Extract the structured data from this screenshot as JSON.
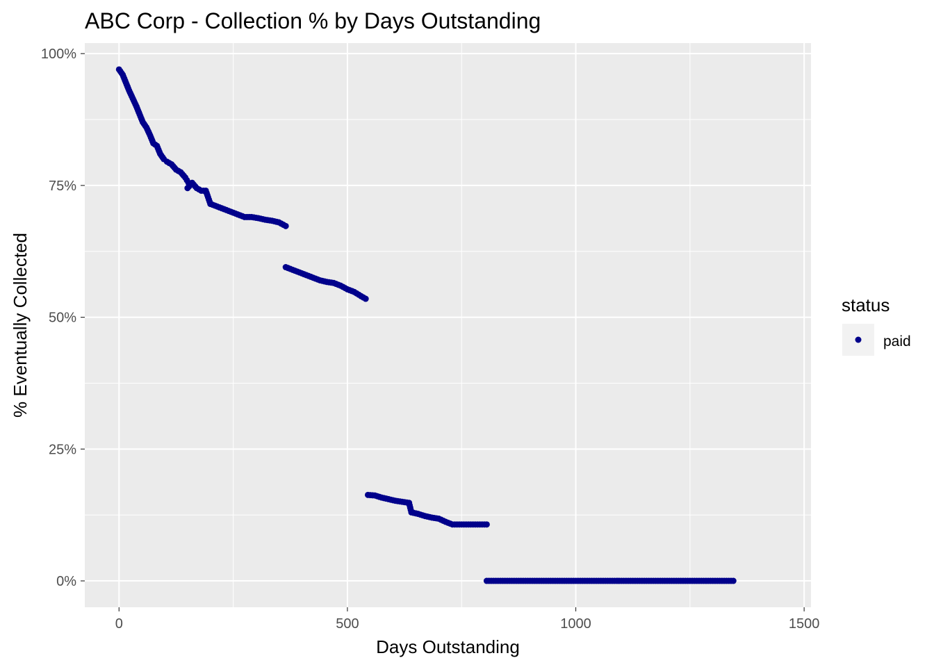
{
  "chart_data": {
    "type": "scatter",
    "title": "ABC Corp  - Collection % by Days Outstanding",
    "xlabel": "Days Outstanding",
    "ylabel": "% Eventually Collected",
    "xlim": [
      -75,
      1515
    ],
    "ylim": [
      -0.05,
      1.02
    ],
    "x_ticks": [
      0,
      500,
      1000,
      1500
    ],
    "x_tick_labels": [
      "0",
      "500",
      "1000",
      "1500"
    ],
    "y_ticks": [
      0,
      0.25,
      0.5,
      0.75,
      1.0
    ],
    "y_tick_labels": [
      "0%",
      "25%",
      "50%",
      "75%",
      "100%"
    ],
    "grid": true,
    "legend": {
      "title": "status",
      "position": "right",
      "entries": [
        {
          "label": "paid",
          "color": "#00008B"
        }
      ]
    },
    "series": [
      {
        "name": "paid",
        "color": "#00008B",
        "x": [
          0,
          8,
          15,
          22,
          30,
          38,
          45,
          52,
          60,
          68,
          75,
          83,
          90,
          98,
          105,
          115,
          125,
          135,
          145,
          152,
          150,
          160,
          170,
          180,
          190,
          200,
          200,
          215,
          230,
          245,
          260,
          275,
          290,
          305,
          320,
          335,
          350,
          365,
          365,
          380,
          395,
          410,
          425,
          440,
          455,
          470,
          485,
          500,
          515,
          530,
          540,
          545,
          560,
          575,
          590,
          605,
          620,
          635,
          640,
          655,
          670,
          685,
          700,
          715,
          730,
          745,
          760,
          775,
          790,
          805,
          805,
          830,
          860,
          890,
          920,
          950,
          980,
          1010,
          1040,
          1070,
          1100,
          1130,
          1160,
          1190,
          1220,
          1250,
          1280,
          1310,
          1340,
          1345
        ],
        "y": [
          0.97,
          0.96,
          0.945,
          0.93,
          0.915,
          0.9,
          0.885,
          0.87,
          0.86,
          0.845,
          0.83,
          0.825,
          0.81,
          0.8,
          0.795,
          0.79,
          0.78,
          0.775,
          0.765,
          0.755,
          0.745,
          0.755,
          0.745,
          0.74,
          0.74,
          0.715,
          0.715,
          0.71,
          0.705,
          0.7,
          0.695,
          0.69,
          0.69,
          0.688,
          0.685,
          0.683,
          0.68,
          0.673,
          0.595,
          0.59,
          0.585,
          0.58,
          0.575,
          0.57,
          0.567,
          0.565,
          0.56,
          0.553,
          0.548,
          0.54,
          0.535,
          0.163,
          0.162,
          0.158,
          0.155,
          0.152,
          0.15,
          0.148,
          0.13,
          0.127,
          0.123,
          0.12,
          0.118,
          0.112,
          0.107,
          0.107,
          0.107,
          0.107,
          0.107,
          0.107,
          0.0,
          0.0,
          0.0,
          0.0,
          0.0,
          0.0,
          0.0,
          0.0,
          0.0,
          0.0,
          0.0,
          0.0,
          0.0,
          0.0,
          0.0,
          0.0,
          0.0,
          0.0,
          0.0,
          0.0
        ]
      }
    ]
  }
}
